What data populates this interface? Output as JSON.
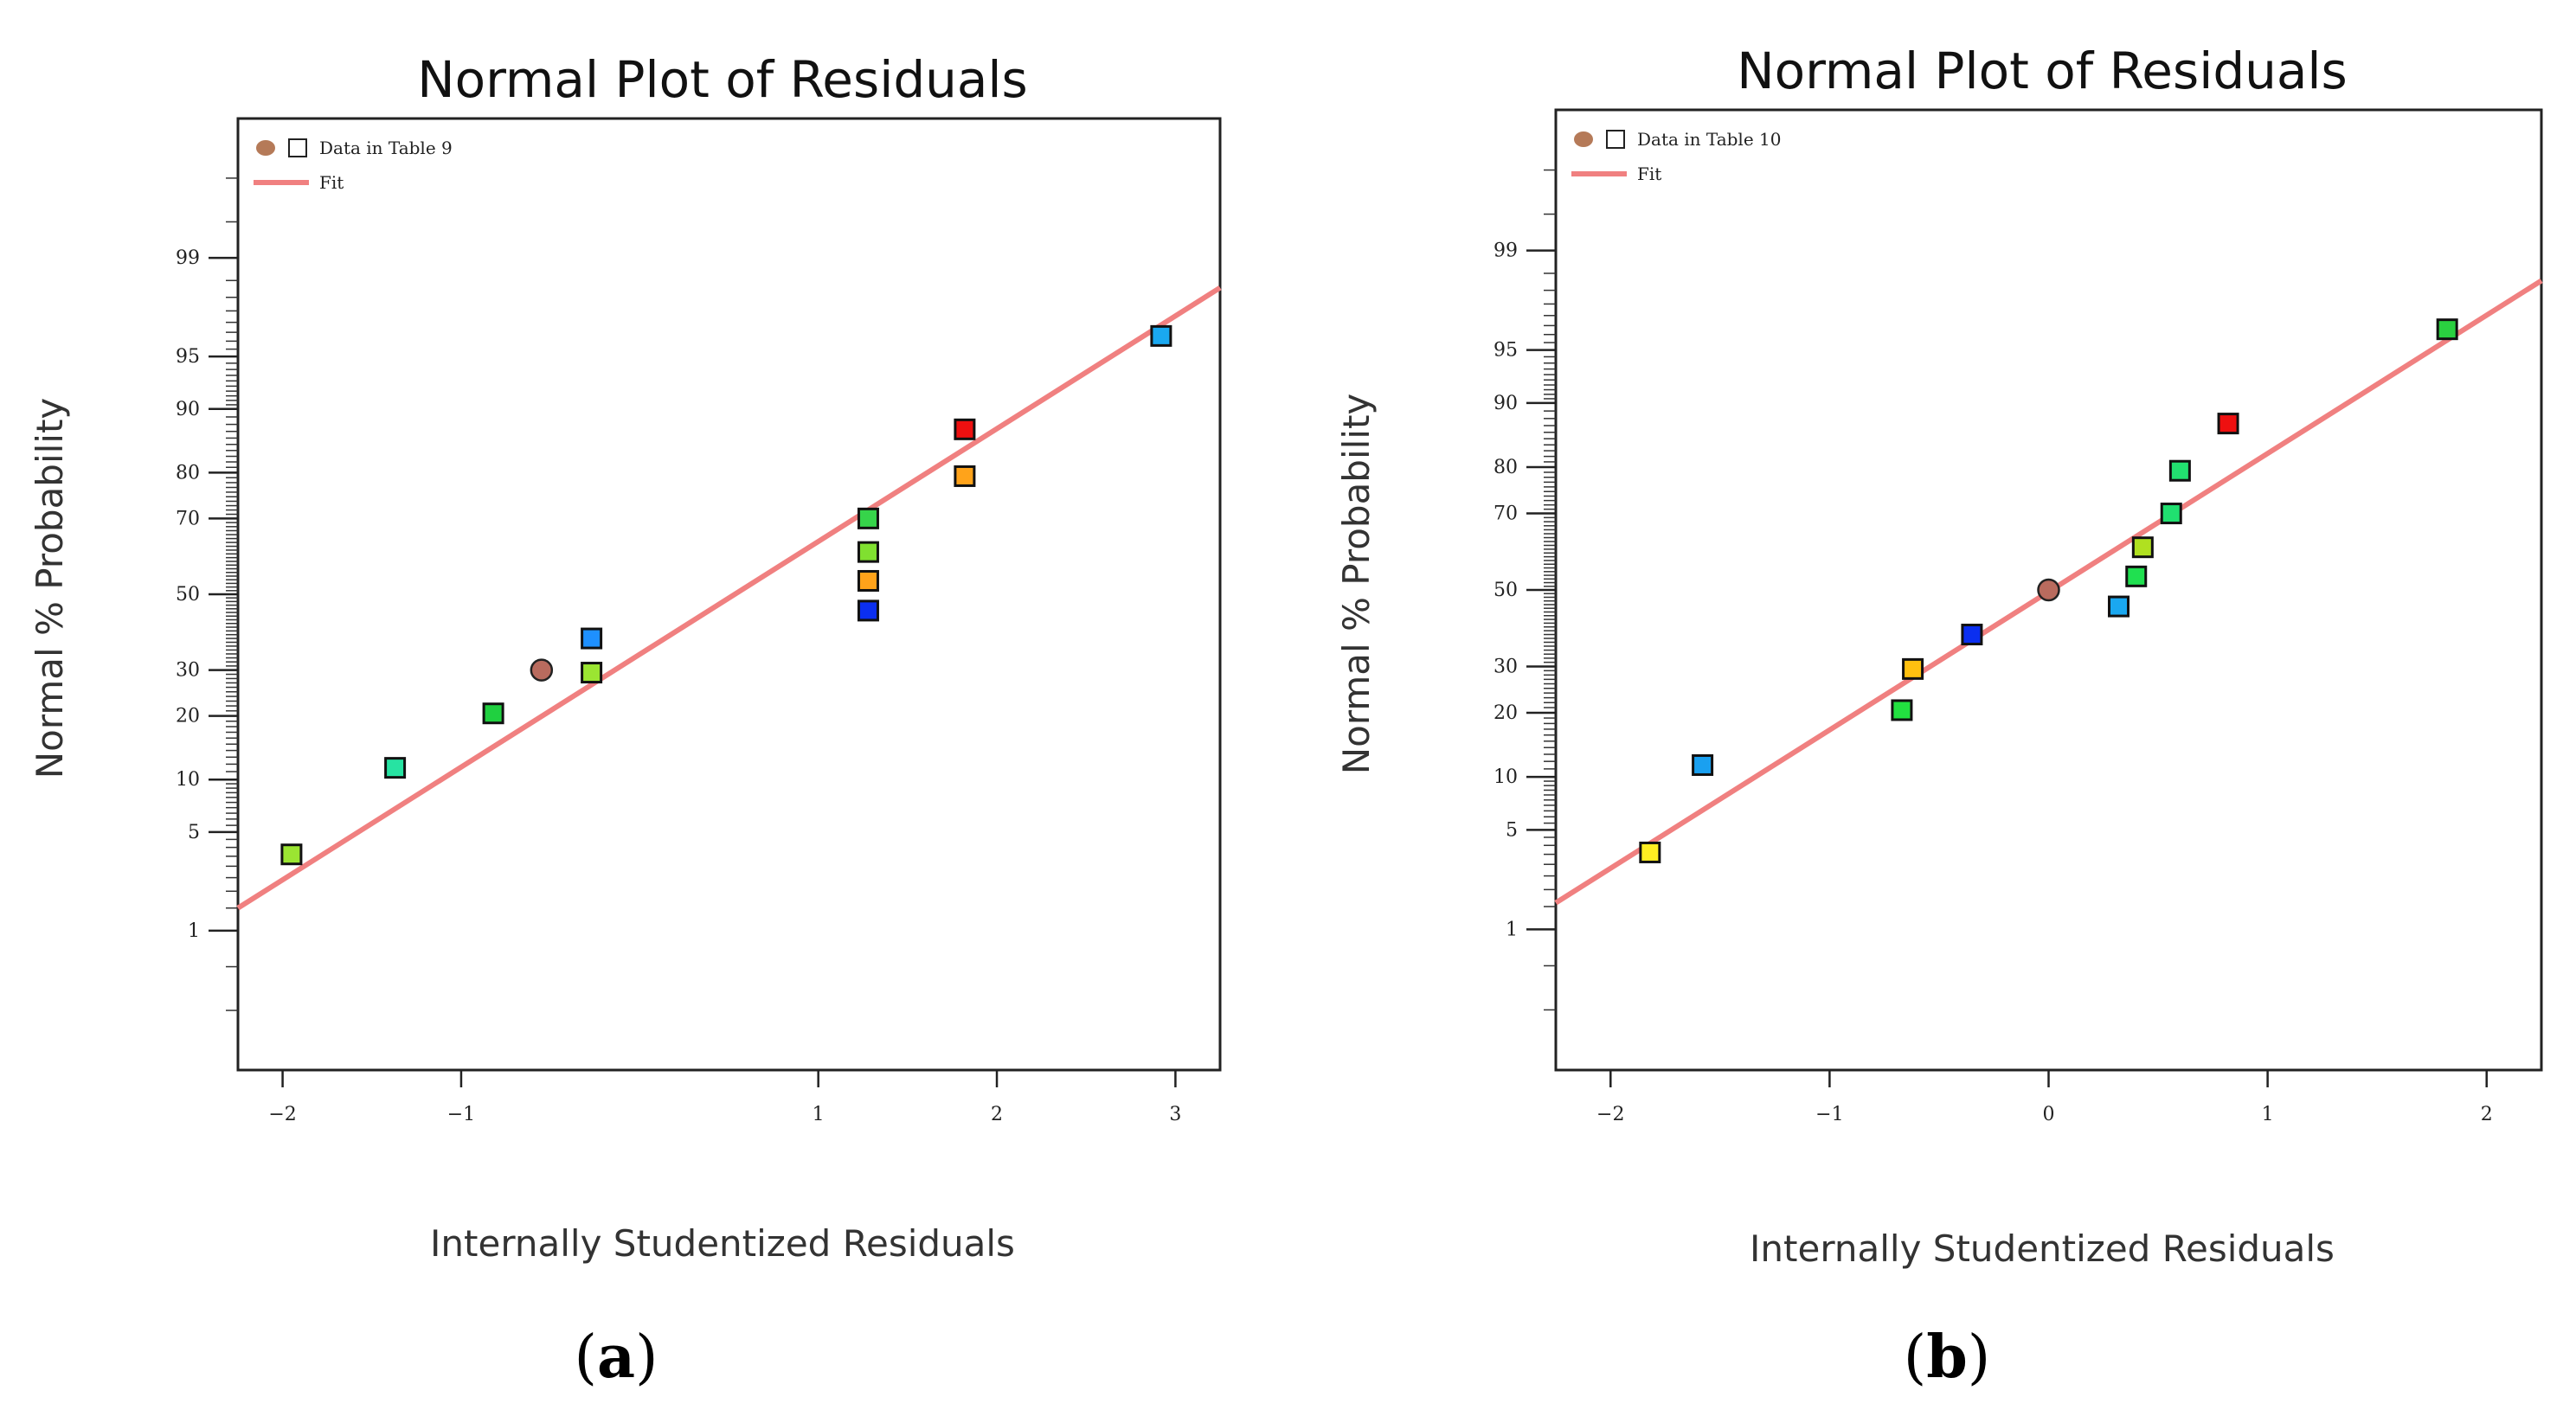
{
  "chart_data": [
    {
      "type": "scatter",
      "panel_label": "a",
      "title": "Normal Plot of Residuals",
      "xlabel": "Internally Studentized Residuals",
      "ylabel": "Normal % Probability",
      "xlim": [
        -2.25,
        3.25
      ],
      "x_ticks": [
        -2,
        -1,
        1,
        2,
        3
      ],
      "x_tick_labels": [
        "−2",
        "−1",
        "1",
        "2",
        "3"
      ],
      "y_ticks": [
        1,
        5,
        10,
        20,
        30,
        50,
        70,
        80,
        90,
        95,
        99
      ],
      "y_tick_labels": [
        "1",
        "5",
        "10",
        "20",
        "30",
        "50",
        "70",
        "80",
        "90",
        "95",
        "99"
      ],
      "legend": {
        "data_label": "Data in Table 9",
        "fit_label": "Fit",
        "position": "top-left"
      },
      "fit_line": {
        "color": "#f08080",
        "y_at_xmin": 1.5,
        "y_at_xmax": 98.3
      },
      "points": [
        {
          "x": -1.95,
          "y": 3.6,
          "color": "#9be532",
          "shape": "square"
        },
        {
          "x": -1.37,
          "y": 11.5,
          "color": "#27e3a2",
          "shape": "square"
        },
        {
          "x": -0.82,
          "y": 20.5,
          "color": "#20d040",
          "shape": "square"
        },
        {
          "x": -0.55,
          "y": 30,
          "color": "#b96b5e",
          "shape": "circle"
        },
        {
          "x": -0.27,
          "y": 29.4,
          "color": "#9be532",
          "shape": "square"
        },
        {
          "x": -0.27,
          "y": 38,
          "color": "#1e90ff",
          "shape": "square"
        },
        {
          "x": 1.28,
          "y": 45.5,
          "color": "#0b2ff0",
          "shape": "square"
        },
        {
          "x": 1.28,
          "y": 53.7,
          "color": "#ffa31a",
          "shape": "square"
        },
        {
          "x": 1.28,
          "y": 61.5,
          "color": "#80e030",
          "shape": "square"
        },
        {
          "x": 1.28,
          "y": 70,
          "color": "#36d44a",
          "shape": "square"
        },
        {
          "x": 1.82,
          "y": 79.3,
          "color": "#ffa31a",
          "shape": "square"
        },
        {
          "x": 1.82,
          "y": 87.3,
          "color": "#ee1010",
          "shape": "square"
        },
        {
          "x": 2.92,
          "y": 96.3,
          "color": "#1aa8f0",
          "shape": "square"
        }
      ]
    },
    {
      "type": "scatter",
      "panel_label": "b",
      "title": "Normal Plot of Residuals",
      "xlabel": "Internally Studentized Residuals",
      "ylabel": "Normal % Probability",
      "xlim": [
        -2.25,
        2.25
      ],
      "x_ticks": [
        -2,
        -1,
        0,
        1,
        2
      ],
      "x_tick_labels": [
        "−2",
        "−1",
        "0",
        "1",
        "2"
      ],
      "y_ticks": [
        1,
        5,
        10,
        20,
        30,
        50,
        70,
        80,
        90,
        95,
        99
      ],
      "y_tick_labels": [
        "1",
        "5",
        "10",
        "20",
        "30",
        "50",
        "70",
        "80",
        "90",
        "95",
        "99"
      ],
      "legend": {
        "data_label": "Data in Table 10",
        "fit_label": "Fit",
        "position": "top-left"
      },
      "fit_line": {
        "color": "#f08080",
        "y_at_xmin": 1.6,
        "y_at_xmax": 98.3
      },
      "points": [
        {
          "x": -1.82,
          "y": 3.6,
          "color": "#ffee22",
          "shape": "square"
        },
        {
          "x": -1.58,
          "y": 11.5,
          "color": "#1aa0f0",
          "shape": "square"
        },
        {
          "x": -0.67,
          "y": 20.5,
          "color": "#22e040",
          "shape": "square"
        },
        {
          "x": -0.62,
          "y": 29.4,
          "color": "#ffc010",
          "shape": "square"
        },
        {
          "x": -0.35,
          "y": 38,
          "color": "#0b2ff0",
          "shape": "square"
        },
        {
          "x": 0.0,
          "y": 50,
          "color": "#b96b5e",
          "shape": "circle"
        },
        {
          "x": 0.32,
          "y": 45.5,
          "color": "#1aa8f0",
          "shape": "square"
        },
        {
          "x": 0.4,
          "y": 53.7,
          "color": "#20e050",
          "shape": "square"
        },
        {
          "x": 0.43,
          "y": 61.5,
          "color": "#b0e020",
          "shape": "square"
        },
        {
          "x": 0.56,
          "y": 70,
          "color": "#20e070",
          "shape": "square"
        },
        {
          "x": 0.6,
          "y": 79.3,
          "color": "#22e070",
          "shape": "square"
        },
        {
          "x": 0.82,
          "y": 87.3,
          "color": "#ee1010",
          "shape": "square"
        },
        {
          "x": 1.82,
          "y": 96.3,
          "color": "#2ad040",
          "shape": "square"
        }
      ]
    }
  ]
}
